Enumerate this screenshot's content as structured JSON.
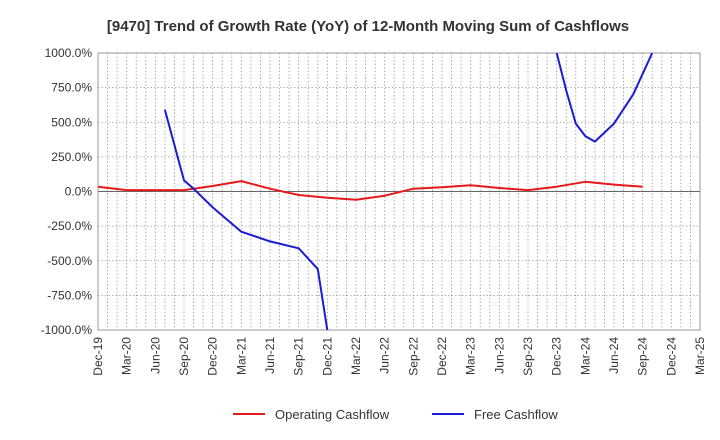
{
  "chart_data": {
    "type": "line",
    "title": "[9470]  Trend of Growth Rate (YoY) of 12-Month Moving Sum of Cashflows",
    "xlabel": "",
    "ylabel": "",
    "ylim": [
      -1000,
      1000
    ],
    "y_ticks": [
      1000,
      750,
      500,
      250,
      0,
      -250,
      -500,
      -750,
      -1000
    ],
    "y_tick_labels": [
      "1000.0%",
      "750.0%",
      "500.0%",
      "250.0%",
      "0.0%",
      "-250.0%",
      "-500.0%",
      "-750.0%",
      "-1000.0%"
    ],
    "x_tick_labels": [
      "Dec-19",
      "Mar-20",
      "Jun-20",
      "Sep-20",
      "Dec-20",
      "Mar-21",
      "Jun-21",
      "Sep-21",
      "Dec-21",
      "Mar-22",
      "Jun-22",
      "Sep-22",
      "Dec-22",
      "Mar-23",
      "Jun-23",
      "Sep-23",
      "Dec-23",
      "Mar-24",
      "Jun-24",
      "Sep-24",
      "Dec-24",
      "Mar-25"
    ],
    "grid": true,
    "legend_position": "bottom",
    "series": [
      {
        "name": "Operating Cashflow",
        "color": "#e8191a",
        "points": [
          [
            "Dec-19",
            35
          ],
          [
            "Mar-20",
            10
          ],
          [
            "Jun-20",
            10
          ],
          [
            "Sep-20",
            10
          ],
          [
            "Dec-20",
            40
          ],
          [
            "Mar-21",
            75
          ],
          [
            "Jun-21",
            20
          ],
          [
            "Sep-21",
            -25
          ],
          [
            "Dec-21",
            -45
          ],
          [
            "Mar-22",
            -60
          ],
          [
            "Jun-22",
            -30
          ],
          [
            "Sep-22",
            20
          ],
          [
            "Dec-22",
            30
          ],
          [
            "Mar-23",
            45
          ],
          [
            "Jun-23",
            25
          ],
          [
            "Sep-23",
            10
          ],
          [
            "Dec-23",
            35
          ],
          [
            "Mar-24",
            70
          ],
          [
            "Jun-24",
            50
          ],
          [
            "Sep-24",
            35
          ]
        ]
      },
      {
        "name": "Free Cashflow",
        "color": "#1b1bd6",
        "segments": [
          [
            [
              "Jul-20",
              590
            ],
            [
              "Sep-20",
              80
            ],
            [
              "Oct-20",
              20
            ],
            [
              "Dec-20",
              -115
            ],
            [
              "Mar-21",
              -290
            ],
            [
              "Jun-21",
              -360
            ],
            [
              "Sep-21",
              -410
            ],
            [
              "Nov-21",
              -560
            ],
            [
              "Dec-21",
              -1000
            ]
          ],
          [
            [
              "Dec-23",
              1000
            ],
            [
              "Jan-24",
              730
            ],
            [
              "Feb-24",
              490
            ],
            [
              "Mar-24",
              400
            ],
            [
              "Apr-24",
              360
            ],
            [
              "Jun-24",
              490
            ],
            [
              "Aug-24",
              700
            ],
            [
              "Oct-24",
              1000
            ]
          ]
        ]
      }
    ]
  }
}
